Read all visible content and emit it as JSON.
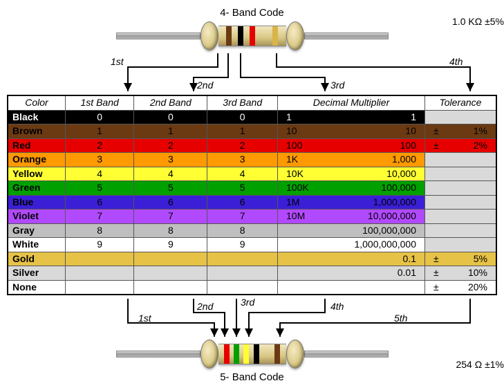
{
  "topTitle": "4- Band Code",
  "bottomTitle": "5- Band Code",
  "topResistor": {
    "bands": [
      "#6b3a12",
      "#000000",
      "#e60000",
      "#d9b44a"
    ],
    "valueLabel": "1.0 KΩ  ±5%"
  },
  "bottomResistor": {
    "bands": [
      "#e60000",
      "#00a000",
      "#ffff33",
      "#000000",
      "#6b3a12"
    ],
    "valueLabel": "254 Ω  ±1%"
  },
  "topArrows": [
    "1st",
    "2nd",
    "3rd",
    "4th"
  ],
  "bottomArrows": [
    "1st",
    "2nd",
    "3rd",
    "4th",
    "5th"
  ],
  "headers": [
    "Color",
    "1st Band",
    "2nd Band",
    "3rd Band",
    "Decimal Multiplier",
    "Tolerance"
  ],
  "rows": [
    {
      "name": "Black",
      "bg": "#000000",
      "fg": "#ffffff",
      "d1": "0",
      "d2": "0",
      "d3": "0",
      "multK": "1",
      "multN": "1",
      "tolPM": "",
      "tolV": ""
    },
    {
      "name": "Brown",
      "bg": "#6b3a12",
      "fg": "#000000",
      "d1": "1",
      "d2": "1",
      "d3": "1",
      "multK": "10",
      "multN": "10",
      "tolPM": "±",
      "tolV": "1%"
    },
    {
      "name": "Red",
      "bg": "#e60000",
      "fg": "#000000",
      "d1": "2",
      "d2": "2",
      "d3": "2",
      "multK": "100",
      "multN": "100",
      "tolPM": "±",
      "tolV": "2%"
    },
    {
      "name": "Orange",
      "bg": "#ff9900",
      "fg": "#000000",
      "d1": "3",
      "d2": "3",
      "d3": "3",
      "multK": "1K",
      "multN": "1,000",
      "tolPM": "",
      "tolV": ""
    },
    {
      "name": "Yellow",
      "bg": "#ffff33",
      "fg": "#000000",
      "d1": "4",
      "d2": "4",
      "d3": "4",
      "multK": "10K",
      "multN": "10,000",
      "tolPM": "",
      "tolV": ""
    },
    {
      "name": "Green",
      "bg": "#00a000",
      "fg": "#000000",
      "d1": "5",
      "d2": "5",
      "d3": "5",
      "multK": "100K",
      "multN": "100,000",
      "tolPM": "",
      "tolV": ""
    },
    {
      "name": "Blue",
      "bg": "#3a1fd6",
      "fg": "#000000",
      "d1": "6",
      "d2": "6",
      "d3": "6",
      "multK": "1M",
      "multN": "1,000,000",
      "tolPM": "",
      "tolV": ""
    },
    {
      "name": "Violet",
      "bg": "#b14aff",
      "fg": "#000000",
      "d1": "7",
      "d2": "7",
      "d3": "7",
      "multK": "10M",
      "multN": "10,000,000",
      "tolPM": "",
      "tolV": ""
    },
    {
      "name": "Gray",
      "bg": "#bfbfbf",
      "fg": "#000000",
      "d1": "8",
      "d2": "8",
      "d3": "8",
      "multK": "",
      "multN": "100,000,000",
      "tolPM": "",
      "tolV": ""
    },
    {
      "name": "White",
      "bg": "#ffffff",
      "fg": "#000000",
      "d1": "9",
      "d2": "9",
      "d3": "9",
      "multK": "",
      "multN": "1,000,000,000",
      "tolPM": "",
      "tolV": ""
    },
    {
      "name": "Gold",
      "bg": "#e6c247",
      "fg": "#000000",
      "d1": "",
      "d2": "",
      "d3": "",
      "multK": "",
      "multN": "0.1",
      "tolPM": "±",
      "tolV": "5%"
    },
    {
      "name": "Silver",
      "bg": "#d9d9d9",
      "fg": "#000000",
      "d1": "",
      "d2": "",
      "d3": "",
      "multK": "",
      "multN": "0.01",
      "tolPM": "±",
      "tolV": "10%"
    },
    {
      "name": "None",
      "bg": "#ffffff",
      "fg": "#000000",
      "d1": "",
      "d2": "",
      "d3": "",
      "multK": "",
      "multN": "",
      "tolPM": "±",
      "tolV": "20%"
    }
  ],
  "noToleranceBg": "#d9d9d9"
}
